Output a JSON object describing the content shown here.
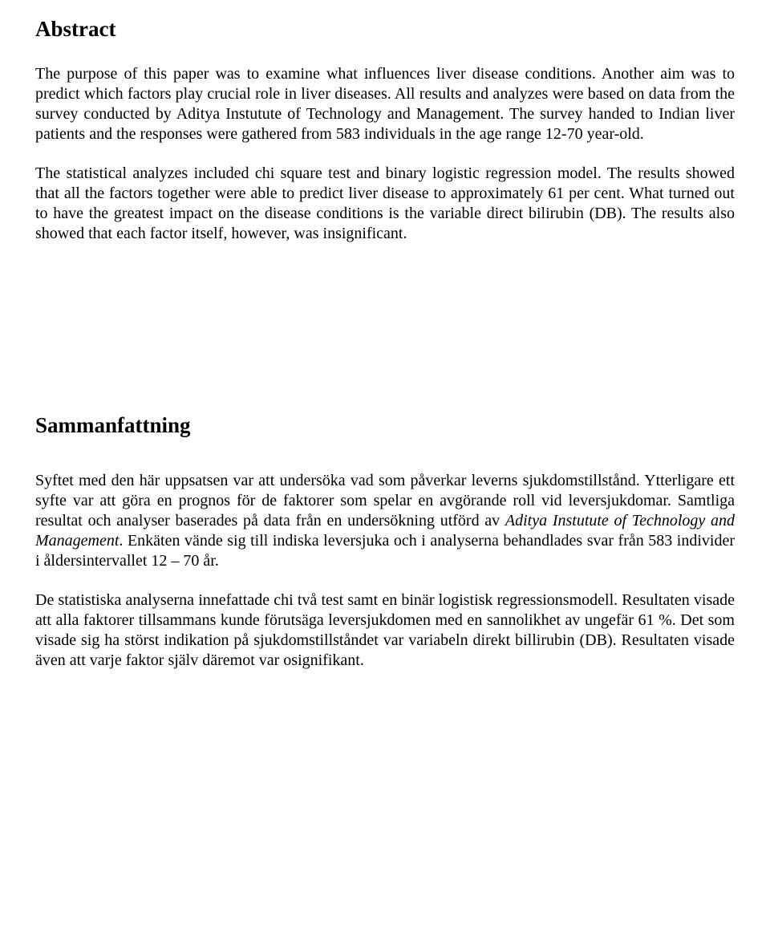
{
  "abstract": {
    "heading": "Abstract",
    "para1": "The purpose of this paper was to examine what influences liver disease conditions. Another aim was to predict which factors play crucial role in liver diseases. All results and analyzes were based on data from the survey conducted by Aditya Instutute of Technology and Management. The survey handed to Indian liver patients and the responses were gathered from 583 individuals in the age range 12-70 year-old.",
    "para2": "The statistical analyzes included chi square test and binary logistic regression model. The results showed that all the factors together were able to predict liver disease to approximately 61 per cent. What turned out to have the greatest impact on the disease conditions is the variable direct bilirubin (DB). The results also showed that each factor itself, however, was insignificant."
  },
  "samman": {
    "heading": "Sammanfattning",
    "para1_pre": "Syftet med den här uppsatsen var att undersöka vad som påverkar leverns sjukdomstillstånd. Ytterligare ett syfte var att göra en prognos för de faktorer som spelar en avgörande roll vid leversjukdomar. Samtliga resultat och analyser baserades på data från en undersökning utförd av ",
    "para1_italic": "Aditya Instutute of Technology and Management",
    "para1_post": ". Enkäten vände sig till indiska leversjuka och i analyserna behandlades svar från 583 individer i åldersintervallet 12 – 70 år.",
    "para2": "De statistiska analyserna innefattade chi två test samt en binär logistisk regressionsmodell. Resultaten visade att alla faktorer tillsammans kunde förutsäga leversjukdomen med en sannolikhet av ungefär 61 %. Det som visade sig ha störst indikation på sjukdomstillståndet var variabeln direkt billirubin (DB). Resultaten visade även att varje faktor själv däremot var osignifikant."
  }
}
